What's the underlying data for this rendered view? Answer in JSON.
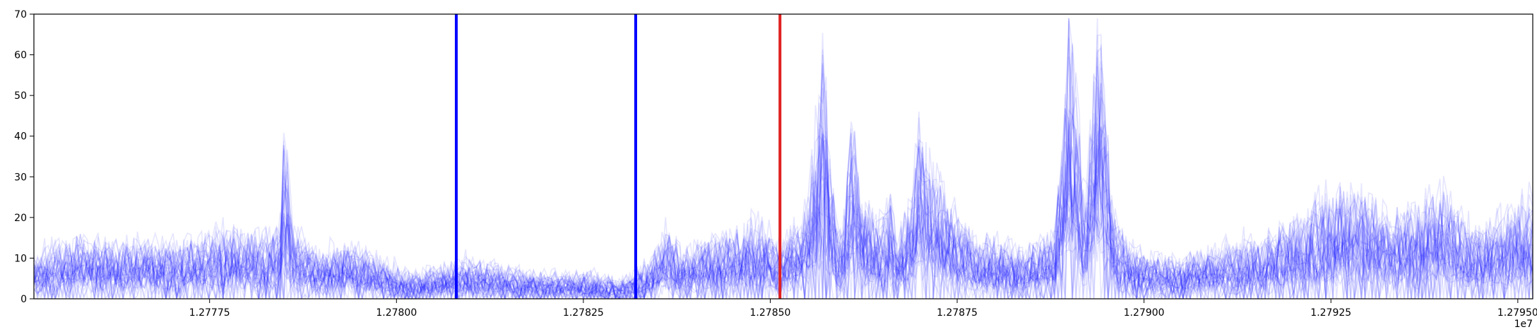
{
  "chart_data": {
    "type": "line",
    "title": "",
    "xlabel": "",
    "ylabel": "",
    "x_offset_label": "1e7",
    "x_unit_scale": 10000000,
    "xlim": [
      12775150,
      12795200
    ],
    "ylim": [
      0,
      70
    ],
    "x_ticks": [
      12777500,
      12780000,
      12782500,
      12785000,
      12787500,
      12790000,
      12792500,
      12795000
    ],
    "x_tick_labels": [
      "1.27775",
      "1.27800",
      "1.27825",
      "1.27850",
      "1.27875",
      "1.27900",
      "1.27925",
      "1.27950"
    ],
    "y_ticks": [
      0,
      10,
      20,
      30,
      40,
      50,
      60,
      70
    ],
    "y_tick_labels": [
      "0",
      "10",
      "20",
      "30",
      "40",
      "50",
      "60",
      "70"
    ],
    "grid": false,
    "legend": "none",
    "series_color": "#0000ff",
    "series_count": 40,
    "series_opacity": 0.1,
    "profile": {
      "x": [
        12775150,
        12775400,
        12775800,
        12776200,
        12776600,
        12777000,
        12777400,
        12777800,
        12778200,
        12778450,
        12778500,
        12778600,
        12779000,
        12779400,
        12779800,
        12780200,
        12780600,
        12781000,
        12781400,
        12781800,
        12782200,
        12782600,
        12783000,
        12783400,
        12783600,
        12783800,
        12784200,
        12784600,
        12784900,
        12785100,
        12785300,
        12785500,
        12785600,
        12785700,
        12785800,
        12785900,
        12786000,
        12786100,
        12786200,
        12786400,
        12786600,
        12786700,
        12786900,
        12787000,
        12787200,
        12787400,
        12787600,
        12787800,
        12788000,
        12788400,
        12788800,
        12788900,
        12789000,
        12789100,
        12789200,
        12789300,
        12789400,
        12789500,
        12789600,
        12789800,
        12790000,
        12790400,
        12790800,
        12791200,
        12791600,
        12792000,
        12792400,
        12792800,
        12793200,
        12793600,
        12794000,
        12794400,
        12794800,
        12795200
      ],
      "y": [
        5,
        7,
        8,
        7,
        8,
        7,
        8,
        9,
        8,
        10,
        24,
        9,
        6,
        7,
        5,
        3,
        4,
        5,
        4,
        3,
        3,
        3,
        2,
        5,
        9,
        6,
        8,
        9,
        10,
        7,
        9,
        12,
        24,
        33,
        20,
        8,
        12,
        26,
        14,
        10,
        13,
        8,
        14,
        24,
        17,
        12,
        10,
        7,
        8,
        6,
        9,
        21,
        38,
        27,
        12,
        25,
        40,
        22,
        11,
        7,
        6,
        5,
        6,
        7,
        8,
        10,
        13,
        15,
        11,
        12,
        14,
        9,
        11,
        13
      ]
    },
    "vertical_lines": [
      {
        "x": 12780800,
        "color": "#0000ff"
      },
      {
        "x": 12783200,
        "color": "#0000ff"
      },
      {
        "x": 12785130,
        "color": "#e02020"
      }
    ]
  }
}
